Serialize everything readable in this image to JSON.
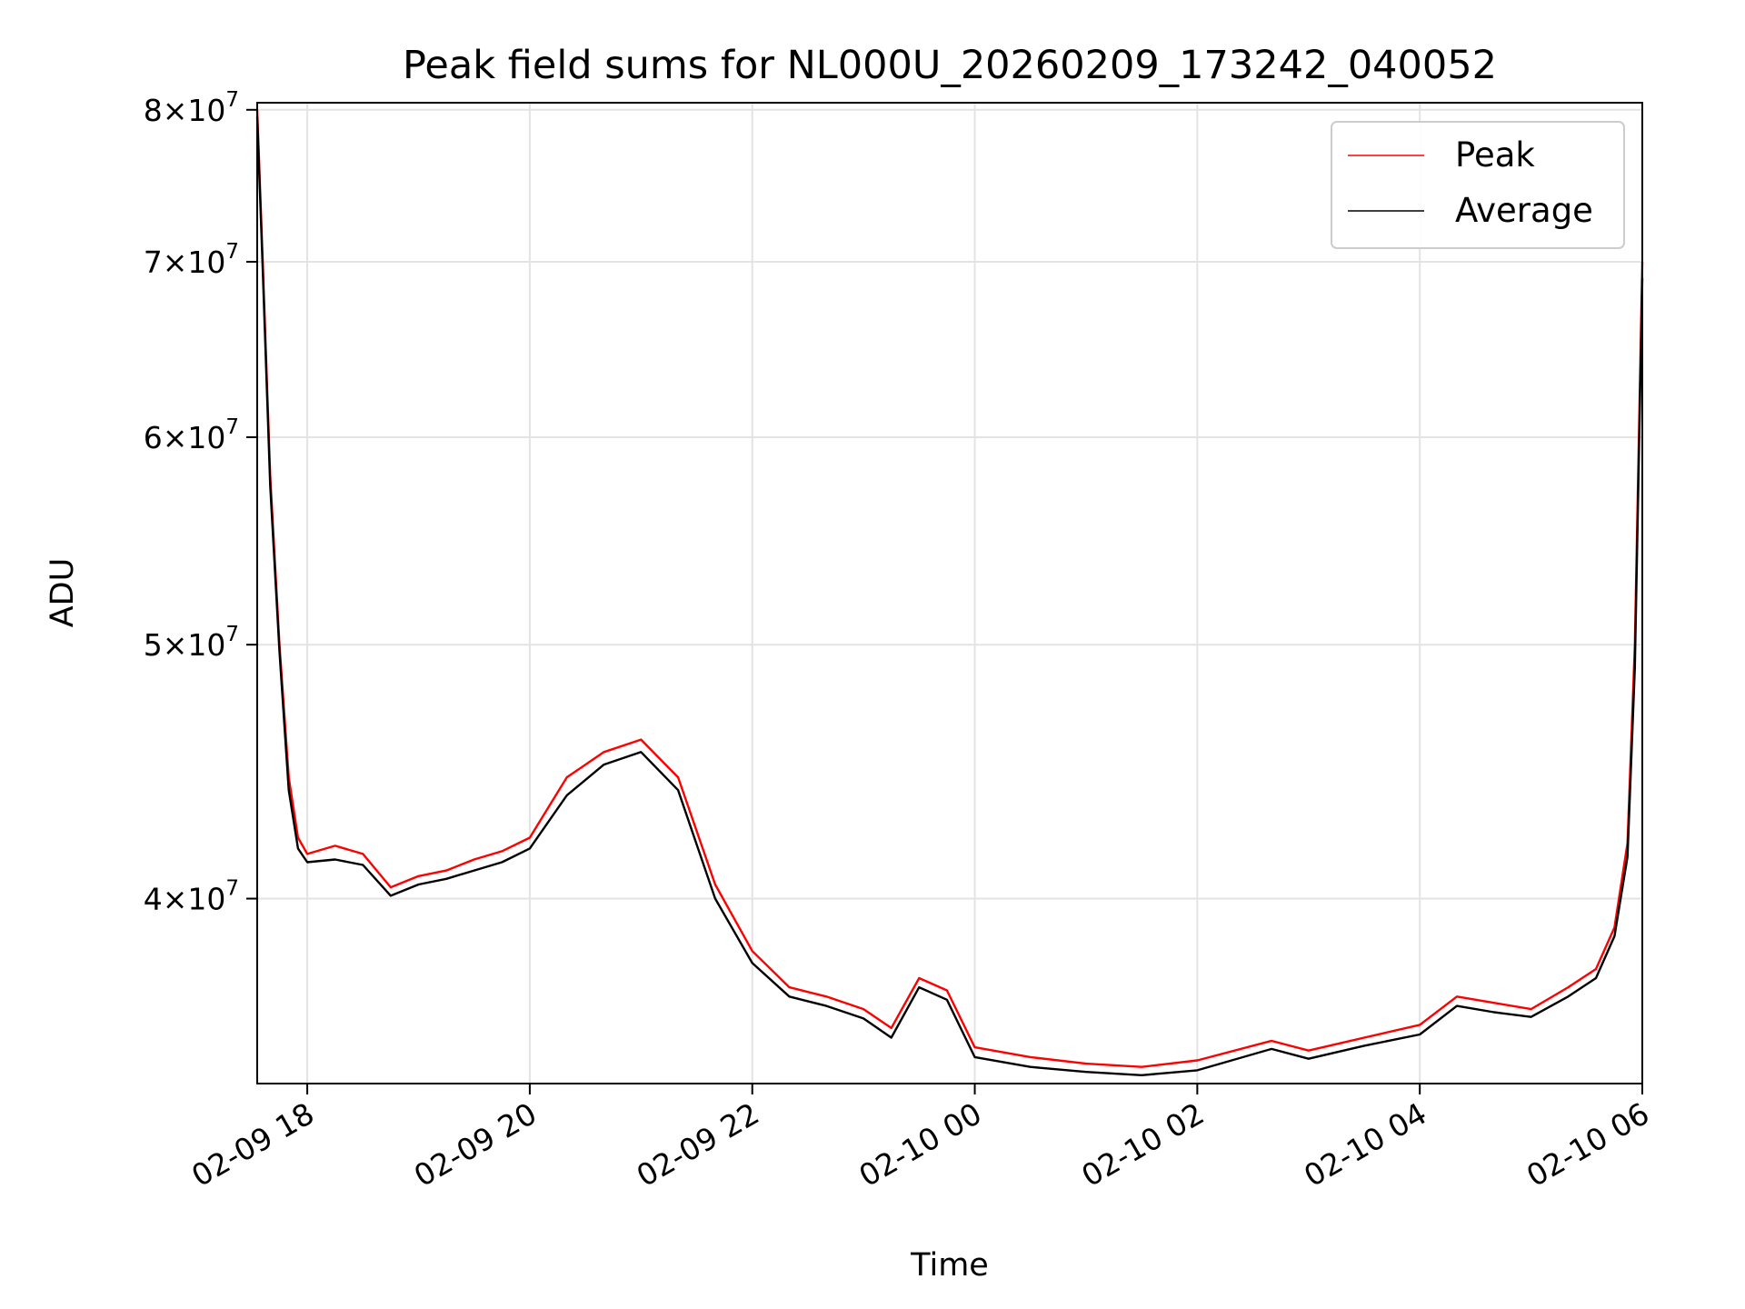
{
  "chart_data": {
    "type": "line",
    "title": "Peak field sums for NL000U_20260209_173242_040052",
    "xlabel": "Time",
    "ylabel": "ADU",
    "x_axis": {
      "type": "datetime",
      "range": [
        "2026-02-09 17:33",
        "2026-02-10 06:00"
      ],
      "ticks": [
        {
          "value": "2026-02-09 18:00",
          "label": "02-09 18"
        },
        {
          "value": "2026-02-09 20:00",
          "label": "02-09 20"
        },
        {
          "value": "2026-02-09 22:00",
          "label": "02-09 22"
        },
        {
          "value": "2026-02-10 00:00",
          "label": "02-10 00"
        },
        {
          "value": "2026-02-10 02:00",
          "label": "02-10 02"
        },
        {
          "value": "2026-02-10 04:00",
          "label": "02-10 04"
        },
        {
          "value": "2026-02-10 06:00",
          "label": "02-10 06"
        }
      ]
    },
    "y_axis": {
      "scale": "log",
      "range": [
        34000000,
        80500000
      ],
      "ticks": [
        {
          "value": 40000000,
          "mantissa": "4",
          "exponent": "7"
        },
        {
          "value": 50000000,
          "mantissa": "5",
          "exponent": "7"
        },
        {
          "value": 60000000,
          "mantissa": "6",
          "exponent": "7"
        },
        {
          "value": 70000000,
          "mantissa": "7",
          "exponent": "7"
        },
        {
          "value": 80000000,
          "mantissa": "8",
          "exponent": "7"
        }
      ]
    },
    "grid": true,
    "legend_position": "top-right",
    "x": [
      "2026-02-09 17:33",
      "2026-02-09 17:36",
      "2026-02-09 17:40",
      "2026-02-09 17:45",
      "2026-02-09 17:50",
      "2026-02-09 17:55",
      "2026-02-09 18:00",
      "2026-02-09 18:15",
      "2026-02-09 18:30",
      "2026-02-09 18:45",
      "2026-02-09 19:00",
      "2026-02-09 19:15",
      "2026-02-09 19:30",
      "2026-02-09 19:45",
      "2026-02-09 20:00",
      "2026-02-09 20:20",
      "2026-02-09 20:40",
      "2026-02-09 21:00",
      "2026-02-09 21:20",
      "2026-02-09 21:40",
      "2026-02-09 22:00",
      "2026-02-09 22:20",
      "2026-02-09 22:40",
      "2026-02-09 23:00",
      "2026-02-09 23:15",
      "2026-02-09 23:30",
      "2026-02-09 23:45",
      "2026-02-10 00:00",
      "2026-02-10 00:30",
      "2026-02-10 01:00",
      "2026-02-10 01:30",
      "2026-02-10 02:00",
      "2026-02-10 02:40",
      "2026-02-10 03:00",
      "2026-02-10 03:30",
      "2026-02-10 04:00",
      "2026-02-10 04:20",
      "2026-02-10 04:40",
      "2026-02-10 05:00",
      "2026-02-10 05:20",
      "2026-02-10 05:35",
      "2026-02-10 05:45",
      "2026-02-10 05:52",
      "2026-02-10 05:56",
      "2026-02-10 06:00"
    ],
    "series": [
      {
        "name": "Peak",
        "color": "#ff0000",
        "values": [
          80000000,
          70000000,
          58000000,
          50000000,
          44500000,
          42200000,
          41600000,
          41900000,
          41600000,
          40400000,
          40800000,
          41000000,
          41400000,
          41700000,
          42200000,
          44500000,
          45500000,
          46000000,
          44500000,
          40500000,
          38200000,
          37000000,
          36700000,
          36300000,
          35700000,
          37300000,
          36900000,
          35100000,
          34800000,
          34600000,
          34500000,
          34700000,
          35300000,
          35000000,
          35400000,
          35800000,
          36700000,
          36500000,
          36300000,
          37000000,
          37600000,
          39000000,
          42000000,
          50000000,
          70000000
        ]
      },
      {
        "name": "Average",
        "color": "#000000",
        "values": [
          79500000,
          69500000,
          57500000,
          49700000,
          44000000,
          41800000,
          41300000,
          41400000,
          41200000,
          40100000,
          40500000,
          40700000,
          41000000,
          41300000,
          41800000,
          43800000,
          45000000,
          45500000,
          44000000,
          40000000,
          37800000,
          36700000,
          36400000,
          36000000,
          35400000,
          37000000,
          36600000,
          34800000,
          34500000,
          34350000,
          34250000,
          34400000,
          35050000,
          34750000,
          35150000,
          35500000,
          36400000,
          36200000,
          36050000,
          36700000,
          37300000,
          38700000,
          41500000,
          49000000,
          69000000
        ]
      }
    ]
  }
}
